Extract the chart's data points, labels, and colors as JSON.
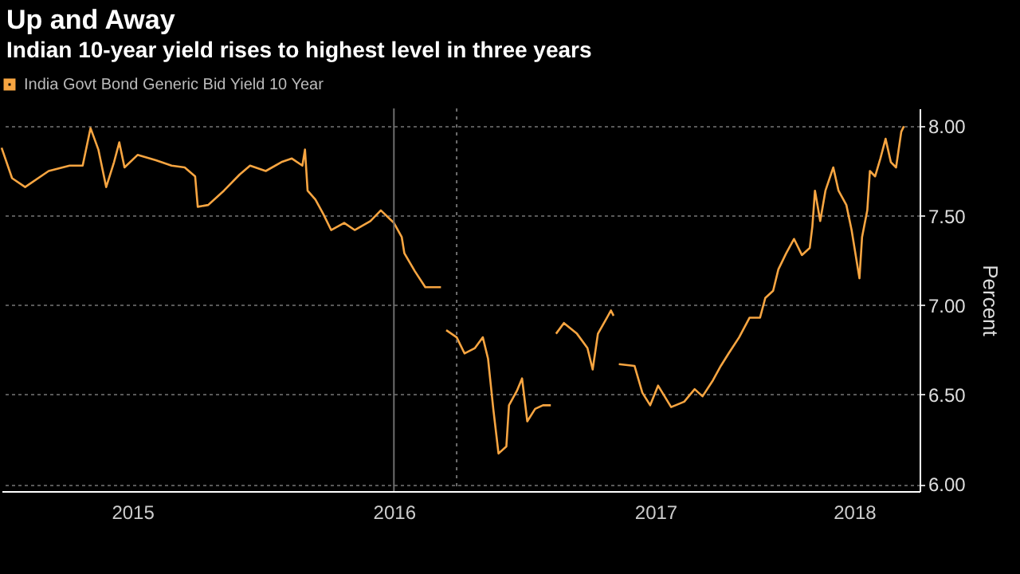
{
  "chart_data": {
    "type": "line",
    "title": "Up and Away",
    "subtitle": "Indian 10-year yield rises to highest level in three years",
    "ylabel": "Percent",
    "xlim": [
      2015.0,
      2018.51
    ],
    "xticks": [
      {
        "value": 2015.5,
        "label": "2015"
      },
      {
        "value": 2016.5,
        "label": "2016"
      },
      {
        "value": 2017.5,
        "label": "2017"
      },
      {
        "value": 2018.26,
        "label": "2018"
      }
    ],
    "ylim": [
      5.96,
      8.1
    ],
    "yticks": [
      {
        "value": 6,
        "label": "6.00"
      },
      {
        "value": 6.5,
        "label": "6.50"
      },
      {
        "value": 7,
        "label": "7.00"
      },
      {
        "value": 7.5,
        "label": "7.50"
      },
      {
        "value": 8,
        "label": "8.00"
      }
    ],
    "grid": "y",
    "legend": "top left",
    "ref_lines": [
      {
        "axis": "x",
        "value": 2016.5,
        "color": "#6e6e6e",
        "line_style": "solid"
      },
      {
        "axis": "x",
        "value": 2016.74,
        "color": "#6e6e6e",
        "line_style": "dotted"
      }
    ],
    "series": [
      {
        "name": "India Govt Bond Generic Bid Yield 10 Year",
        "color": "#f7a541",
        "x": [
          2015.0,
          2015.04,
          2015.09,
          2015.18,
          2015.26,
          2015.31,
          2015.34,
          2015.37,
          2015.4,
          2015.43,
          2015.45,
          2015.47,
          2015.52,
          2015.59,
          2015.65,
          2015.7,
          2015.74,
          2015.75,
          2015.79,
          2015.85,
          2015.91,
          2015.95,
          2016.01,
          2016.07,
          2016.11,
          2016.15,
          2016.16,
          2016.17,
          2016.2,
          2016.23,
          2016.26,
          2016.31,
          2016.35,
          2016.41,
          2016.45,
          2016.5,
          2016.53,
          2016.54,
          2016.58,
          2016.62,
          2016.68,
          2016.69,
          2016.7,
          2016.74,
          2016.77,
          2016.81,
          2016.84,
          2016.86,
          2016.88,
          2016.9,
          2016.93,
          2016.94,
          2016.97,
          2016.99,
          2017.01,
          2017.04,
          2017.07,
          2017.1,
          2017.11,
          2017.12,
          2017.15,
          2017.2,
          2017.24,
          2017.26,
          2017.28,
          2017.33,
          2017.34,
          2017.35,
          2017.36,
          2017.42,
          2017.45,
          2017.48,
          2017.51,
          2017.56,
          2017.61,
          2017.65,
          2017.68,
          2017.72,
          2017.75,
          2017.78,
          2017.82,
          2017.86,
          2017.9,
          2017.92,
          2017.95,
          2017.97,
          2018.0,
          2018.03,
          2018.06,
          2018.09,
          2018.1,
          2018.11,
          2018.13,
          2018.15,
          2018.18,
          2018.2,
          2018.23,
          2018.25,
          2018.28,
          2018.29,
          2018.31,
          2018.32,
          2018.34,
          2018.36,
          2018.38,
          2018.4,
          2018.42,
          2018.44,
          2018.45
        ],
        "values": [
          7.88,
          7.71,
          7.66,
          7.75,
          7.78,
          7.78,
          7.99,
          7.87,
          7.66,
          7.8,
          7.91,
          7.77,
          7.84,
          7.81,
          7.78,
          7.77,
          7.72,
          7.55,
          7.56,
          7.64,
          7.73,
          7.78,
          7.75,
          7.8,
          7.82,
          7.78,
          7.87,
          7.64,
          7.59,
          7.51,
          7.42,
          7.46,
          7.42,
          7.47,
          7.53,
          7.46,
          7.38,
          7.29,
          7.19,
          7.1,
          7.1,
          null,
          6.86,
          6.82,
          6.73,
          6.76,
          6.82,
          6.7,
          6.42,
          6.17,
          6.21,
          6.44,
          6.52,
          6.59,
          6.35,
          6.42,
          6.44,
          6.44,
          null,
          6.84,
          6.9,
          6.84,
          6.76,
          6.64,
          6.84,
          6.97,
          6.94,
          null,
          6.67,
          6.66,
          6.51,
          6.44,
          6.55,
          6.43,
          6.46,
          6.53,
          6.49,
          6.58,
          6.66,
          6.73,
          6.82,
          6.93,
          6.93,
          7.04,
          7.08,
          7.2,
          7.29,
          7.37,
          7.28,
          7.32,
          7.44,
          7.64,
          7.47,
          7.64,
          7.77,
          7.64,
          7.56,
          7.42,
          7.15,
          7.38,
          7.53,
          7.75,
          7.72,
          7.82,
          7.93,
          7.8,
          7.77,
          7.97,
          8.0
        ]
      }
    ]
  }
}
